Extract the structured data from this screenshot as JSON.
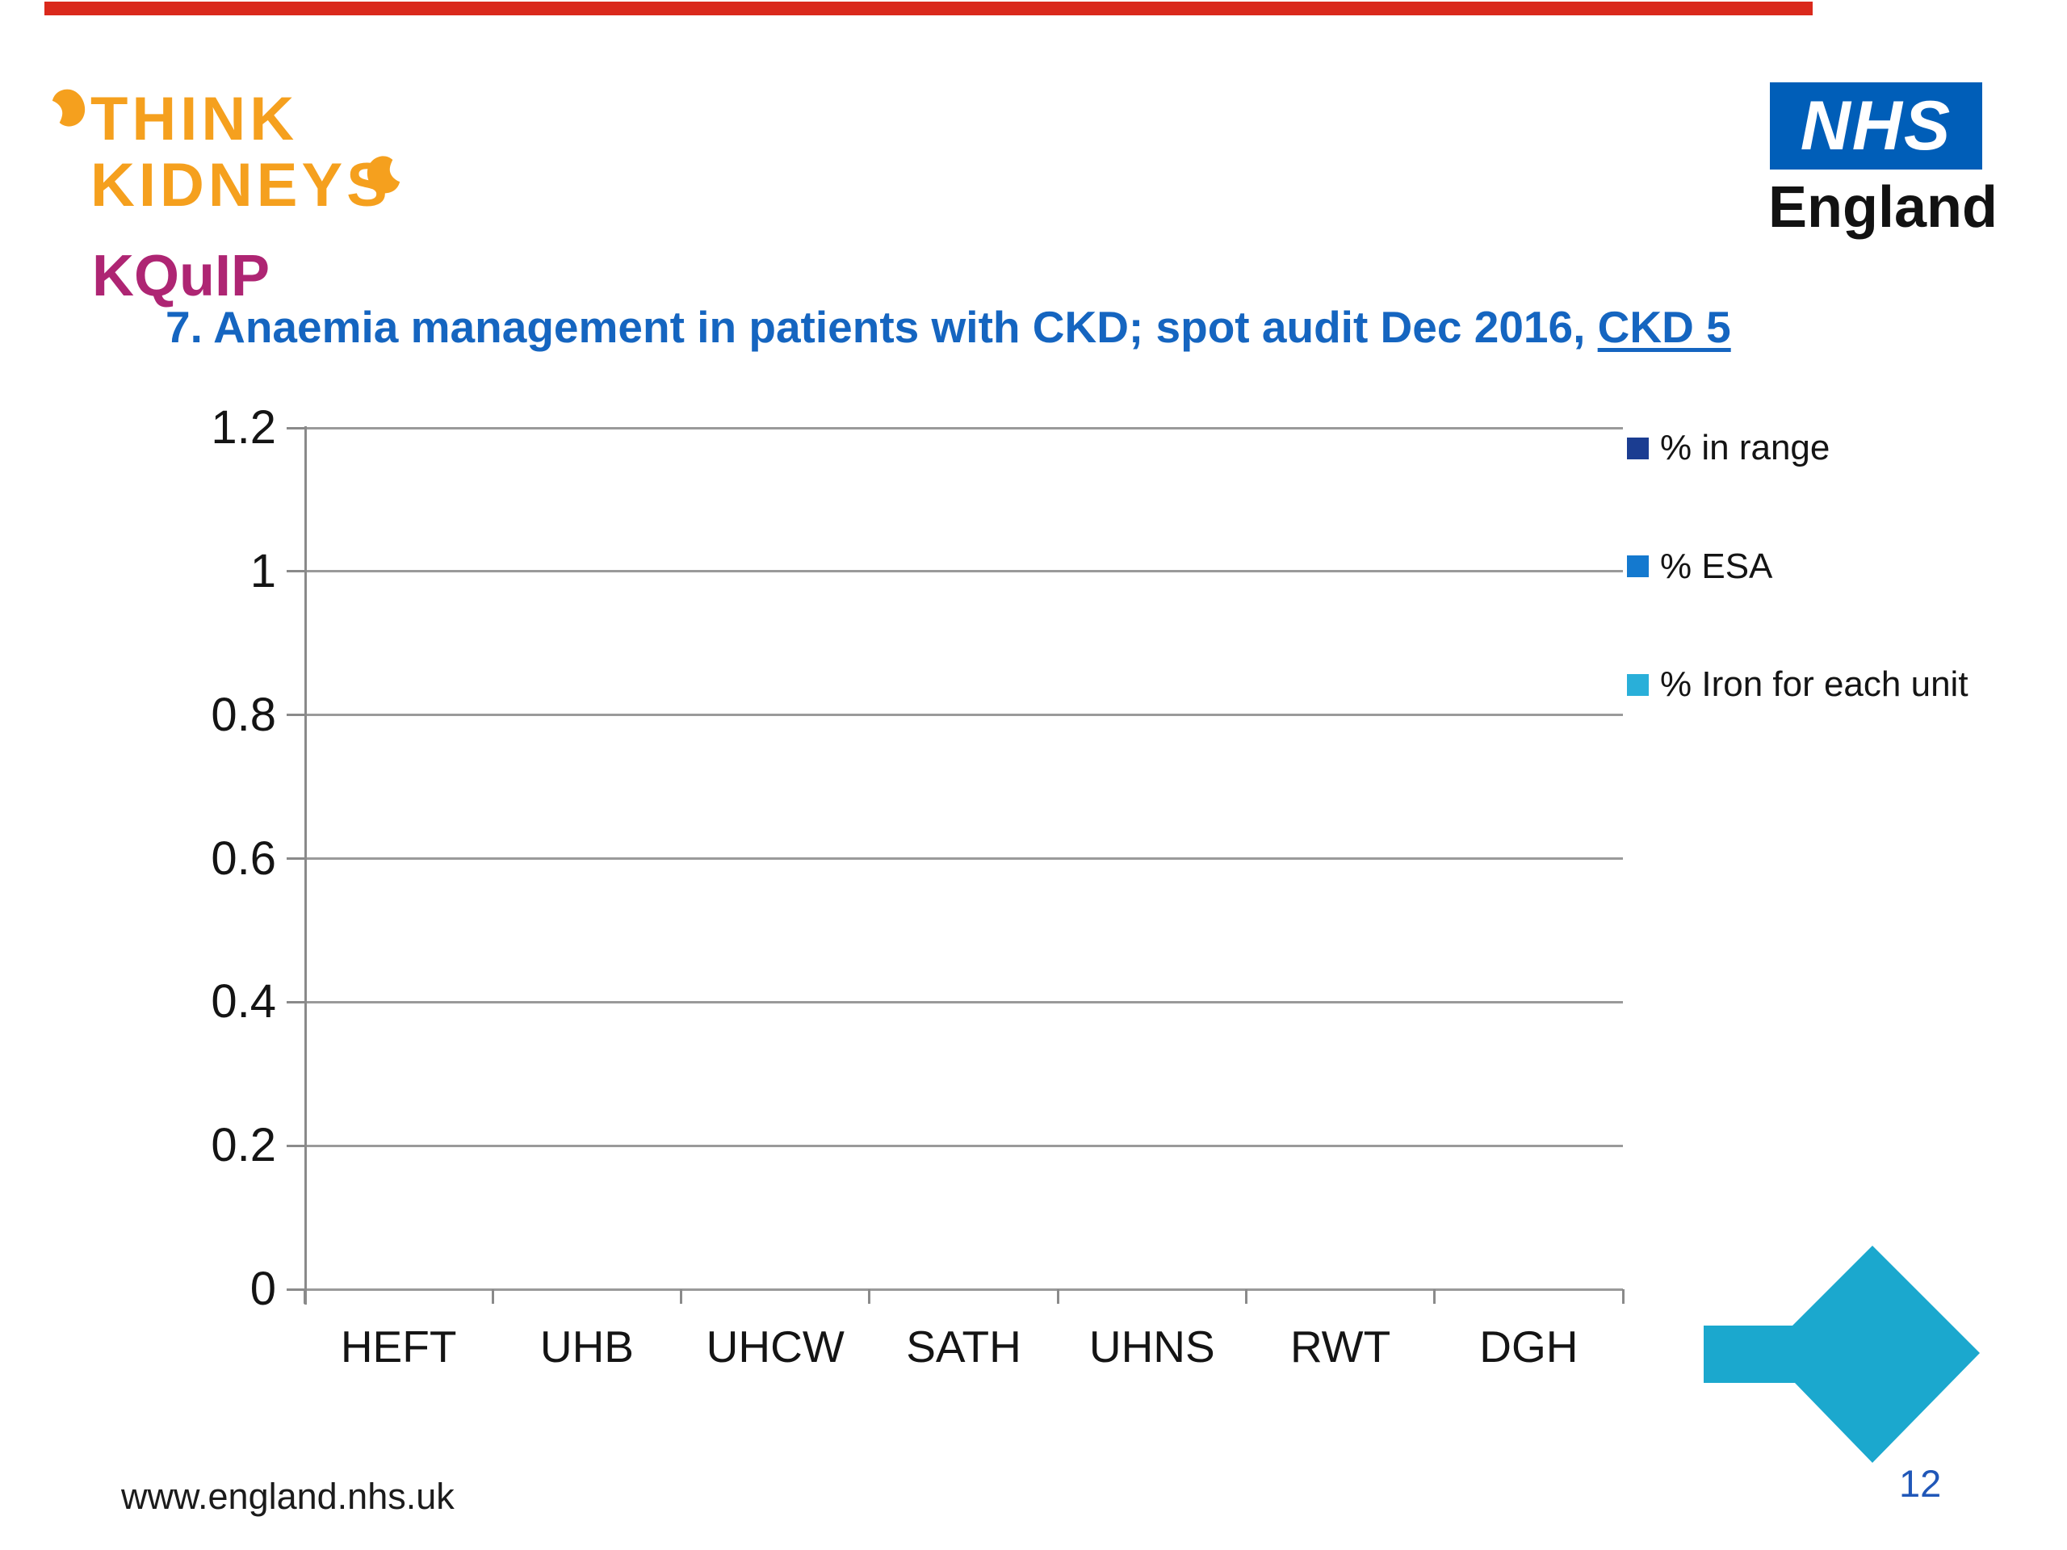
{
  "slide": {
    "top_bar_color": "#DA291C",
    "footer_url": "www.england.nhs.uk",
    "page_number": "12",
    "page_number_color": "#2057B8"
  },
  "logos": {
    "think_kidneys": {
      "line1": "THINK",
      "line2": "KIDNEYS",
      "sub": "KQuIP",
      "orange": "#F5A01E",
      "magenta": "#AE2573"
    },
    "nhs": {
      "box_text": "NHS",
      "sub_text": "England",
      "box_color": "#005EB8"
    }
  },
  "title": {
    "text_main": "7. Anaemia management in patients with CKD; spot audit Dec 2016, ",
    "text_underlined": "CKD 5",
    "color": "#1565C0"
  },
  "legend": {
    "items": [
      {
        "label": "% in range",
        "color": "#1B3D91"
      },
      {
        "label": "% ESA",
        "color": "#1479CF"
      },
      {
        "label": "% Iron for each unit",
        "color": "#29AFD9"
      }
    ]
  },
  "chart_data": {
    "type": "bar",
    "title": "7. Anaemia management in patients with CKD; spot audit Dec 2016, CKD 5",
    "categories": [
      "HEFT",
      "UHB",
      "UHCW",
      "SATH",
      "UHNS",
      "RWT",
      "DGH"
    ],
    "series": [
      {
        "name": "% in range",
        "values": [
          0,
          0,
          0,
          0,
          0,
          0,
          0
        ]
      },
      {
        "name": "% ESA",
        "values": [
          0,
          0,
          0,
          0,
          0,
          0,
          0
        ]
      },
      {
        "name": "% Iron for each unit",
        "values": [
          0,
          0,
          0,
          0,
          0,
          0,
          0
        ]
      }
    ],
    "ylim": [
      0,
      1.2
    ],
    "ytick_labels": [
      "1.2",
      "1",
      "0.8",
      "0.6",
      "0.4",
      "0.2",
      "0"
    ],
    "grid": true,
    "legend_position": "right",
    "grid_color": "#9A9A9A",
    "axis_color": "#8A8A8A"
  },
  "arrow": {
    "color": "#1BA8CE"
  }
}
